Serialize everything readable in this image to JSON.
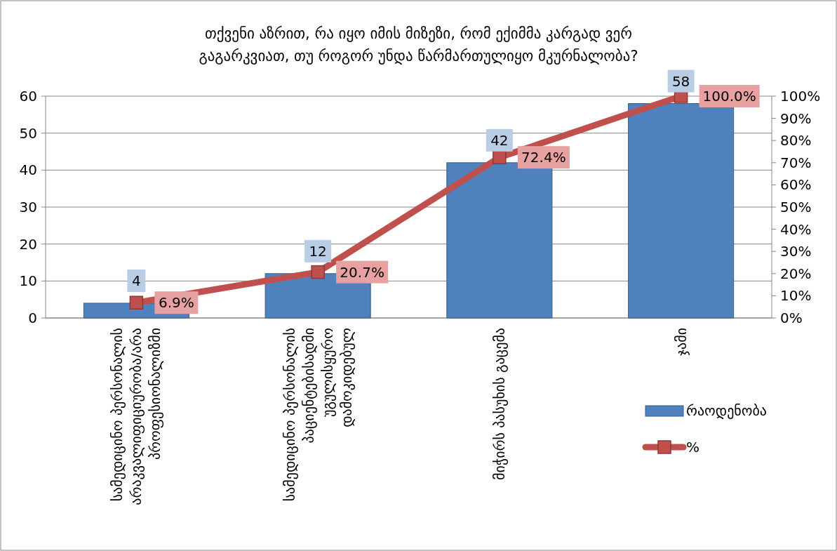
{
  "chart_data": {
    "type": "bar",
    "title": "თქვენი აზრით, რა იყო იმის მიზეზი, რომ ექიმმა კარგად ვერ გაგარკვიათ, თუ როგორ უნდა წარმართულიყო მკურნალობა?",
    "categories": [
      "სამედიცინო პერსონალის არაკვალიფიციურობა/არა პროფესიონალიზმი",
      "სამედიცინო პერსონალის პაციენტებისადმი უგულისყურო დამოკიდებულ",
      "მიჭირს პასუხის გაცემა",
      "ჯამი"
    ],
    "series": [
      {
        "name": "რაოდენობა",
        "color": "#4f81bd",
        "values": [
          4,
          12,
          42,
          58
        ],
        "value_labels": [
          "4",
          "12",
          "42",
          "58"
        ]
      },
      {
        "name": "%",
        "type": "line",
        "axis": "y2",
        "color": "#c0504d",
        "values": [
          6.9,
          20.7,
          72.4,
          100.0
        ],
        "value_labels": [
          "6.9%",
          "20.7%",
          "72.4%",
          "100.0%"
        ]
      }
    ],
    "ylim": [
      0,
      60
    ],
    "yticks": [
      0,
      10,
      20,
      30,
      40,
      50,
      60
    ],
    "y2lim": [
      0,
      100
    ],
    "y2ticks": [
      {
        "value": 0,
        "label": "0%"
      },
      {
        "value": 10,
        "label": "10%"
      },
      {
        "value": 20,
        "label": "20%"
      },
      {
        "value": 30,
        "label": "30%"
      },
      {
        "value": 40,
        "label": "40%"
      },
      {
        "value": 50,
        "label": "50%"
      },
      {
        "value": 60,
        "label": "60%"
      },
      {
        "value": 70,
        "label": "70%"
      },
      {
        "value": 80,
        "label": "80%"
      },
      {
        "value": 90,
        "label": "90%"
      },
      {
        "value": 100,
        "label": "100%"
      }
    ],
    "grid": "y",
    "legend": "right",
    "marker": "square"
  }
}
